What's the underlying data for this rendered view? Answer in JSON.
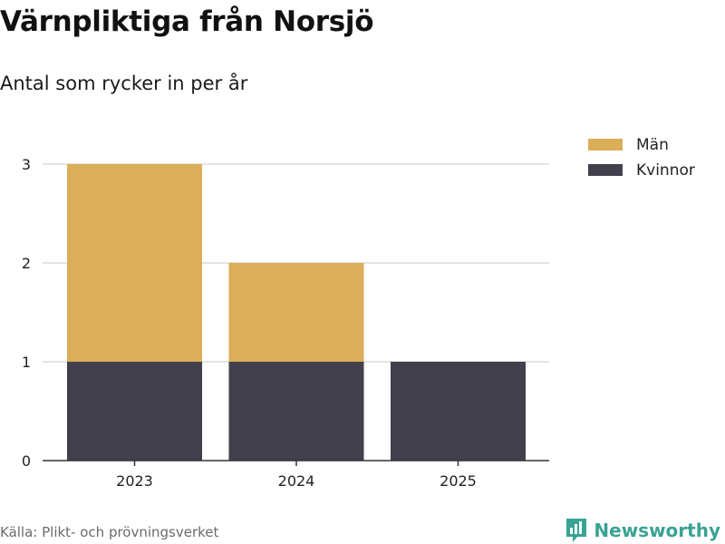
{
  "title": "Värnpliktiga från Norsjö",
  "subtitle": "Antal som rycker in per år",
  "source": "Källa: Plikt- och prövningsverket",
  "brand": "Newsworthy",
  "colors": {
    "men": "#dbae5a",
    "women": "#42404d",
    "grid": "#dcdcdc",
    "axis": "#333333",
    "brand": "#3aa394"
  },
  "chart_data": {
    "type": "bar",
    "stacked": true,
    "categories": [
      "2023",
      "2024",
      "2025"
    ],
    "series": [
      {
        "name": "Kvinnor",
        "values": [
          1,
          1,
          1
        ]
      },
      {
        "name": "Män",
        "values": [
          2,
          1,
          0
        ]
      }
    ],
    "legend": [
      "Män",
      "Kvinnor"
    ],
    "legend_position": "top-right",
    "ylim": [
      0,
      3
    ],
    "yticks": [
      "0",
      "1",
      "2",
      "3"
    ],
    "grid": true
  }
}
